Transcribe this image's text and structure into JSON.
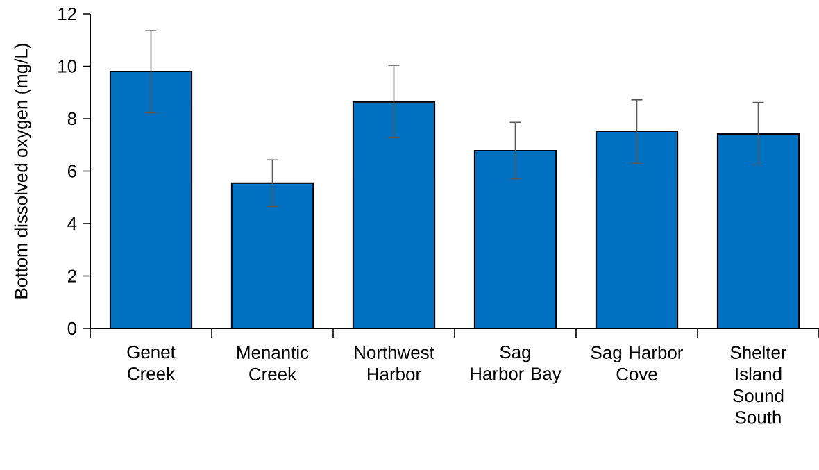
{
  "chart_data": {
    "type": "bar",
    "ylabel": "Bottom dissolved oxygen (mg/L)",
    "categories": [
      "Genet Creek",
      "Menantic Creek",
      "Northwest Harbor",
      "Sag Harbor Bay",
      "Sag Harbor Cove",
      "Shelter Island Sound South"
    ],
    "values": [
      9.8,
      5.54,
      8.64,
      6.78,
      7.52,
      7.42
    ],
    "errors": [
      [
        8.22,
        11.36
      ],
      [
        4.65,
        6.43
      ],
      [
        7.27,
        10.04
      ],
      [
        5.7,
        7.86
      ],
      [
        6.3,
        8.72
      ],
      [
        6.24,
        8.62
      ]
    ],
    "color": "#0070c0",
    "ylim": [
      0,
      12
    ],
    "yticks": [
      0,
      2,
      4,
      6,
      8,
      10,
      12
    ],
    "grid": false
  }
}
